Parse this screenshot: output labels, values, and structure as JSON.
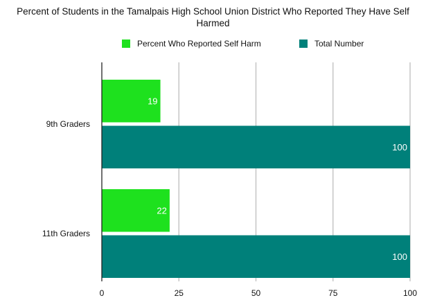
{
  "chart_data": {
    "type": "bar",
    "orientation": "horizontal",
    "title_lines": [
      "Percent of Students in the Tamalpais High School Union District Who Reported They Have Self",
      "Harmed"
    ],
    "categories": [
      "9th Graders",
      "11th Graders"
    ],
    "series": [
      {
        "name": "Percent Who Reported Self Harm",
        "values": [
          19,
          22
        ],
        "color": "#1ee11e"
      },
      {
        "name": "Total Number",
        "values": [
          100,
          100
        ],
        "color": "#00807a"
      }
    ],
    "xlim": [
      0,
      100
    ],
    "xticks": [
      0,
      25,
      50,
      75,
      100
    ],
    "grid": true,
    "legend_position": "top",
    "data_labels": true
  }
}
